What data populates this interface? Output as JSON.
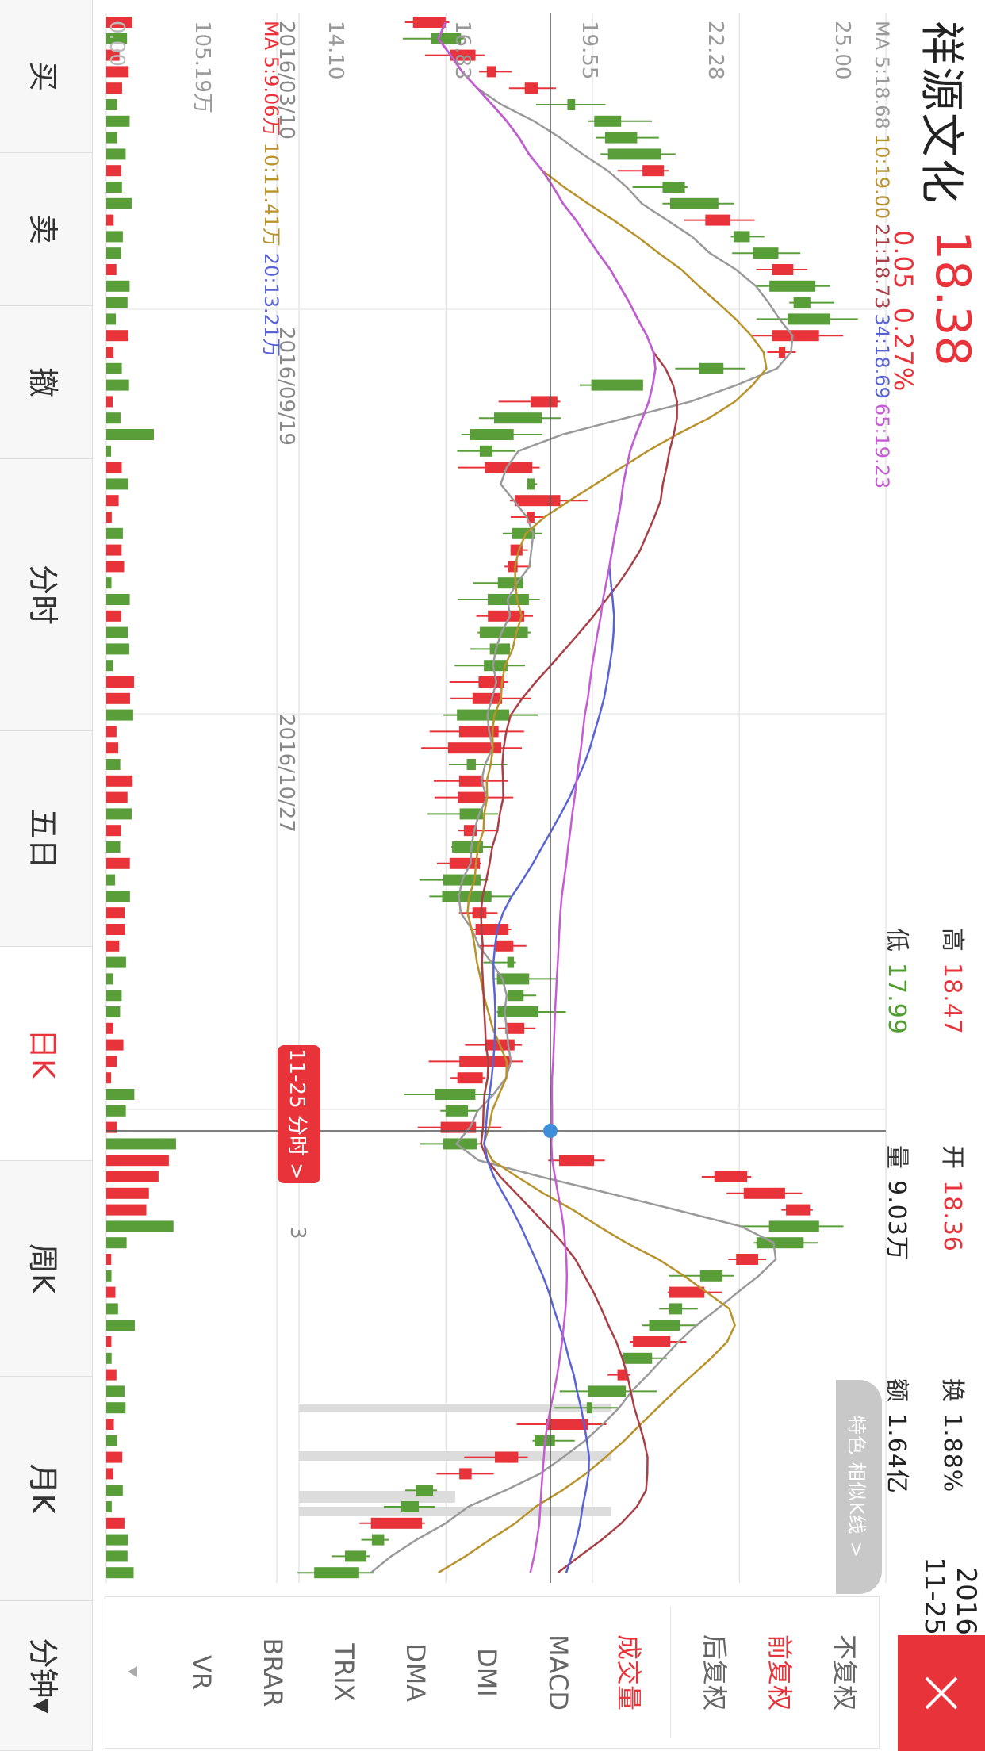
{
  "header": {
    "title": "祥源文化",
    "price": "18.38",
    "change": "0.05",
    "change_pct": "0.27%",
    "quotes": [
      {
        "label": "高",
        "value": "18.47",
        "color": "#e8333b"
      },
      {
        "label": "开",
        "value": "18.36",
        "color": "#e8333b"
      },
      {
        "label": "换",
        "value": "1.88%",
        "color": "#222222"
      },
      {
        "label": "低",
        "value": "17.99",
        "color": "#4f9e2f"
      },
      {
        "label": "量",
        "value": "9.03万",
        "color": "#222222"
      },
      {
        "label": "额",
        "value": "1.64亿",
        "color": "#222222"
      }
    ],
    "date_year": "2016",
    "date_md": "11-25",
    "close_icon": "close-icon"
  },
  "chart": {
    "ma_legend": [
      {
        "text": "MA 5:18.68",
        "color": "#9a9a9a"
      },
      {
        "text": "10:19.00",
        "color": "#b8922a"
      },
      {
        "text": "21:18.73",
        "color": "#a94048"
      },
      {
        "text": "34:18.69",
        "color": "#5a63d6"
      },
      {
        "text": "65:19.23",
        "color": "#c55cd4"
      }
    ],
    "price_ticks": [
      "25.00",
      "22.28",
      "19.55",
      "16.83",
      "14.10"
    ],
    "vol_max": "105.19万",
    "vol_min": "0.00",
    "vol_legend": [
      {
        "text": "MA 5:9.06万",
        "color": "#e8333b"
      },
      {
        "text": "10:11.41万",
        "color": "#b8922a"
      },
      {
        "text": "20:13.21万",
        "color": "#5a63d6"
      }
    ],
    "dates": [
      "2016/03/10",
      "2016/09/19",
      "2016/10/27"
    ],
    "crosshair_tip": "11-25 分时 >",
    "tip_suffix": "3",
    "feature_button": "特色 相似K线 >"
  },
  "right_panel": [
    {
      "label": "不复权",
      "active": false
    },
    {
      "label": "前复权",
      "active": true
    },
    {
      "label": "后复权",
      "active": false
    },
    {
      "label": "成交量",
      "active": true
    },
    {
      "label": "MACD",
      "active": false
    },
    {
      "label": "DMI",
      "active": false
    },
    {
      "label": "DMA",
      "active": false
    },
    {
      "label": "TRIX",
      "active": false
    },
    {
      "label": "BRAR",
      "active": false
    },
    {
      "label": "VR",
      "active": false
    }
  ],
  "tabs": [
    {
      "label": "买",
      "active": false
    },
    {
      "label": "卖",
      "active": false
    },
    {
      "label": "撤",
      "active": false
    },
    {
      "label": "分时",
      "active": false
    },
    {
      "label": "五日",
      "active": false
    },
    {
      "label": "日K",
      "active": true
    },
    {
      "label": "周K",
      "active": false
    },
    {
      "label": "月K",
      "active": false
    },
    {
      "label": "分钟▾",
      "active": false
    }
  ],
  "colors": {
    "up": "#e8333b",
    "down": "#5a9e3a",
    "accent": "#e8333b",
    "crosshair_dot": "#3d8fdc"
  }
}
